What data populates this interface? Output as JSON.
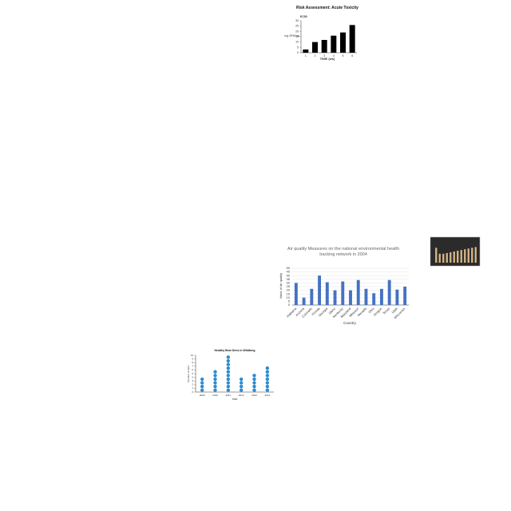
{
  "chart_data": [
    {
      "type": "bar",
      "title": "Risk Assessment: Acute Toxicity",
      "annotation": "EC50",
      "y_label": "mg SPM/mL",
      "x_label": "TIME (wk)",
      "categories": [
        "1",
        "2",
        "3",
        "4",
        "5",
        "6"
      ],
      "values": [
        3,
        10,
        12,
        16,
        19,
        26
      ],
      "color": "#000000",
      "ylim": [
        0,
        30
      ],
      "yticks": [
        0,
        5,
        10,
        15,
        20,
        25,
        30
      ],
      "grid": false
    },
    {
      "type": "bar",
      "title": "Air quality Measures on the national environmental health tracking network in 2004",
      "y_label": "Value of air quality",
      "x_label": "Country",
      "categories": [
        "Alabama",
        "Arizona",
        "Colorado",
        "Florida",
        "Georgia",
        "Idaho",
        "Kentucky",
        "Maryland",
        "Missouri",
        "Nevada",
        "Ohio",
        "Oregon",
        "Texas",
        "Utah",
        "Wisconsin"
      ],
      "values": [
        30,
        10,
        22,
        40,
        31,
        20,
        32,
        20,
        34,
        22,
        16,
        22,
        34,
        21,
        25
      ],
      "color": "#4472c4",
      "ylim": [
        0,
        50
      ],
      "yticks": [
        0,
        5,
        10,
        15,
        20,
        25,
        30,
        35,
        40,
        45,
        50
      ],
      "grid": true
    },
    {
      "type": "bar",
      "values": [
        20,
        12,
        12,
        13,
        14,
        15,
        16,
        17,
        18,
        19,
        20,
        21
      ],
      "color": "#d9b98a",
      "background": "#2b2b2b",
      "ylim": [
        0,
        30
      ]
    },
    {
      "type": "dot",
      "title": "Healthy Bear Dens in Wildberg",
      "y_label": "Number of dens",
      "x_label": "Year",
      "categories": [
        "2009",
        "2010",
        "2011",
        "2012",
        "2013",
        "2014"
      ],
      "values": [
        4,
        6,
        10,
        4,
        5,
        7
      ],
      "color": "#2e8bcf",
      "ylim": [
        0,
        10
      ],
      "yticks": [
        0,
        1,
        2,
        3,
        4,
        5,
        6,
        7,
        8,
        9,
        10
      ],
      "grid": false
    }
  ]
}
